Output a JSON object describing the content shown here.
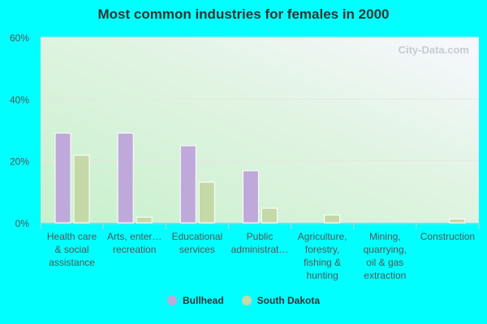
{
  "chart_data": {
    "type": "bar",
    "title": "Most common industries for females in 2000",
    "categories": [
      [
        "Health care",
        "& social",
        "assistance"
      ],
      [
        "Arts, enter…",
        "recreation"
      ],
      [
        "Educational",
        "services"
      ],
      [
        "Public",
        "administrat…"
      ],
      [
        "Agriculture,",
        "forestry,",
        "fishing &",
        "hunting"
      ],
      [
        "Mining,",
        "quarrying,",
        "oil & gas",
        "extraction"
      ],
      [
        "Construction"
      ]
    ],
    "series": [
      {
        "name": "Bullhead",
        "color": "#bea9da",
        "values": [
          29.0,
          29.0,
          24.9,
          16.8,
          0,
          0,
          0
        ]
      },
      {
        "name": "South Dakota",
        "color": "#c4d8a8",
        "values": [
          21.8,
          1.8,
          13.1,
          4.7,
          2.5,
          0,
          1.2
        ]
      }
    ],
    "ylim": [
      0,
      60
    ],
    "yticks": [
      "0%",
      "20%",
      "40%",
      "60%"
    ],
    "ytick_values": [
      0,
      20,
      40,
      60
    ],
    "grid": true,
    "legend": "bottom",
    "watermark": "City-Data.com"
  }
}
